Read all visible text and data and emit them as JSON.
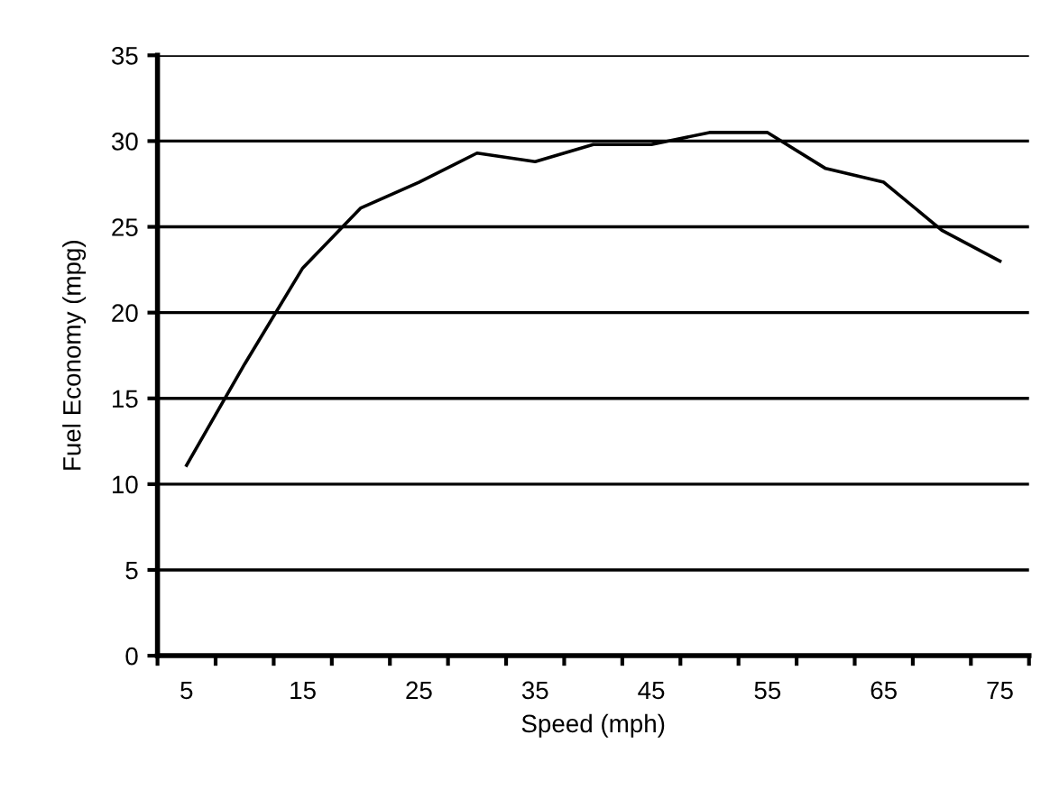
{
  "chart_data": {
    "type": "line",
    "xlabel": "Speed (mph)",
    "ylabel": "Fuel Economy (mpg)",
    "categories": [
      "5",
      null,
      "15",
      null,
      "25",
      null,
      "35",
      null,
      "45",
      null,
      "55",
      null,
      "65",
      null,
      "75"
    ],
    "series": [
      {
        "color": "#000000",
        "values": [
          11.1,
          17.0,
          22.6,
          26.1,
          27.6,
          29.3,
          28.8,
          29.8,
          29.8,
          30.5,
          30.5,
          28.4,
          27.6,
          24.8,
          23.0
        ]
      }
    ],
    "ylim": [
      0,
      35
    ],
    "yticks": [
      0,
      5,
      10,
      15,
      20,
      25,
      30,
      35
    ],
    "grid": "y",
    "legend": false,
    "marker": "none",
    "line_style": "solid"
  }
}
